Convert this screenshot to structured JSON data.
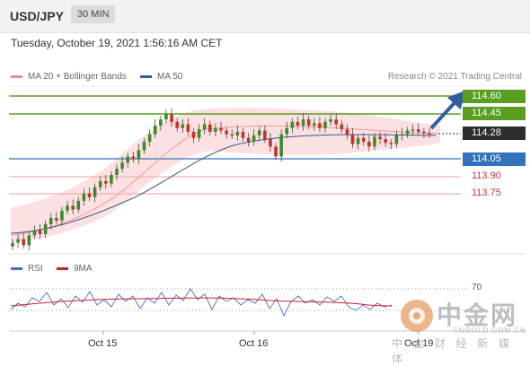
{
  "header": {
    "pair": "USD/JPY",
    "timeframe": "30 MIN"
  },
  "datetime": "Tuesday, October 19, 2021 1:56:16 AM CET",
  "legend": {
    "bb": {
      "label": "MA 20 + Bollinger Bands",
      "color": "#f08a8a"
    },
    "ma50": {
      "label": "MA 50",
      "color": "#3a5a8c"
    }
  },
  "credit": "Research © 2021 Trading Central",
  "rsi_legend": {
    "rsi": {
      "label": "RSI",
      "color": "#4a6fcf"
    },
    "ma9": {
      "label": "9MA",
      "color": "#cc2222"
    }
  },
  "levels": {
    "r2": "114.60",
    "r1": "114.45",
    "last": "114.28",
    "pivot": "114.05",
    "s1": "113.90",
    "s2": "113.75"
  },
  "x_labels": {
    "d1": "Oct 15",
    "d2": "Oct 16",
    "d3": "Oct 19"
  },
  "rsi_level": "70",
  "watermark": {
    "cn": "中金网",
    "en": "CNGOLD.COM.CN",
    "sub": "中 金 财 经 新 媒 体"
  },
  "colors": {
    "up": "#3a8c2a",
    "down": "#c9302c",
    "band": "#f7c9c9",
    "resistance": "#5a9e1f",
    "pivot": "#3173bd",
    "support": "#e8a0a0"
  },
  "chart_data": {
    "type": "candlestick",
    "y_range": [
      113.31,
      114.67
    ],
    "horizontal_levels": [
      114.6,
      114.45,
      114.28,
      114.05,
      113.9,
      113.75
    ],
    "closes": [
      113.4,
      113.43,
      113.38,
      113.46,
      113.5,
      113.47,
      113.55,
      113.6,
      113.58,
      113.66,
      113.7,
      113.67,
      113.74,
      113.8,
      113.77,
      113.85,
      113.9,
      113.88,
      113.95,
      114.0,
      114.05,
      114.1,
      114.08,
      114.15,
      114.22,
      114.28,
      114.35,
      114.4,
      114.44,
      114.38,
      114.33,
      114.36,
      114.3,
      114.25,
      114.32,
      114.36,
      114.3,
      114.33,
      114.31,
      114.28,
      114.27,
      114.3,
      114.25,
      114.22,
      114.27,
      114.31,
      114.24,
      114.18,
      114.1,
      114.28,
      114.33,
      114.38,
      114.35,
      114.4,
      114.35,
      114.37,
      114.33,
      114.38,
      114.4,
      114.36,
      114.32,
      114.28,
      114.2,
      114.25,
      114.22,
      114.18,
      114.26,
      114.24,
      114.21,
      114.2,
      114.27,
      114.28,
      114.31,
      114.32,
      114.3,
      114.29,
      114.28
    ],
    "rsi_level": 70
  }
}
